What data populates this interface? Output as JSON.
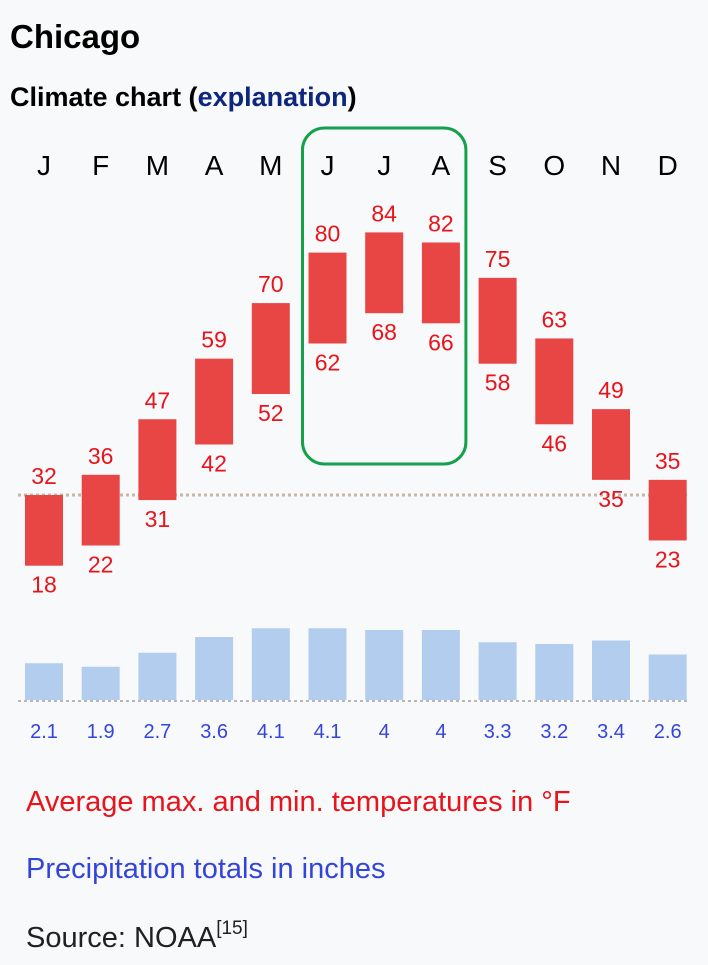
{
  "header": {
    "title": "Chicago",
    "subtitle_prefix": "Climate chart (",
    "subtitle_link": "explanation",
    "subtitle_suffix": ")"
  },
  "chart_data": {
    "type": "climate-chart",
    "categories": [
      "J",
      "F",
      "M",
      "A",
      "M",
      "J",
      "J",
      "A",
      "S",
      "O",
      "N",
      "D"
    ],
    "series": [
      {
        "name": "Average max. temperature",
        "unit": "°F",
        "values": [
          32,
          36,
          47,
          59,
          70,
          80,
          84,
          82,
          75,
          63,
          49,
          35
        ]
      },
      {
        "name": "Average min. temperature",
        "unit": "°F",
        "values": [
          18,
          22,
          31,
          42,
          52,
          62,
          68,
          66,
          58,
          46,
          35,
          23
        ]
      },
      {
        "name": "Precipitation totals",
        "unit": "inches",
        "values": [
          2.1,
          1.9,
          2.7,
          3.6,
          4.1,
          4.1,
          4,
          4,
          3.3,
          3.2,
          3.4,
          2.6
        ]
      }
    ],
    "precipitation_labels": [
      "2.1",
      "1.9",
      "2.7",
      "3.6",
      "4.1",
      "4.1",
      "4",
      "4",
      "3.3",
      "3.2",
      "3.4",
      "2.6"
    ],
    "highlighted_months": [
      "J",
      "J",
      "A"
    ],
    "freezing_reference_f": 32,
    "colors": {
      "temperature": "#e84545",
      "temperature_text": "#e8131b",
      "precipitation": "#b3cdee",
      "precipitation_text": "#3344dd",
      "highlight_box": "#15a04a",
      "reference_line": "#c8b8a4"
    }
  },
  "legend": {
    "temperature": "Average max. and min. temperatures in °F",
    "precipitation": "Precipitation totals in inches"
  },
  "source": {
    "text": "Source: NOAA",
    "ref": "[15]"
  }
}
